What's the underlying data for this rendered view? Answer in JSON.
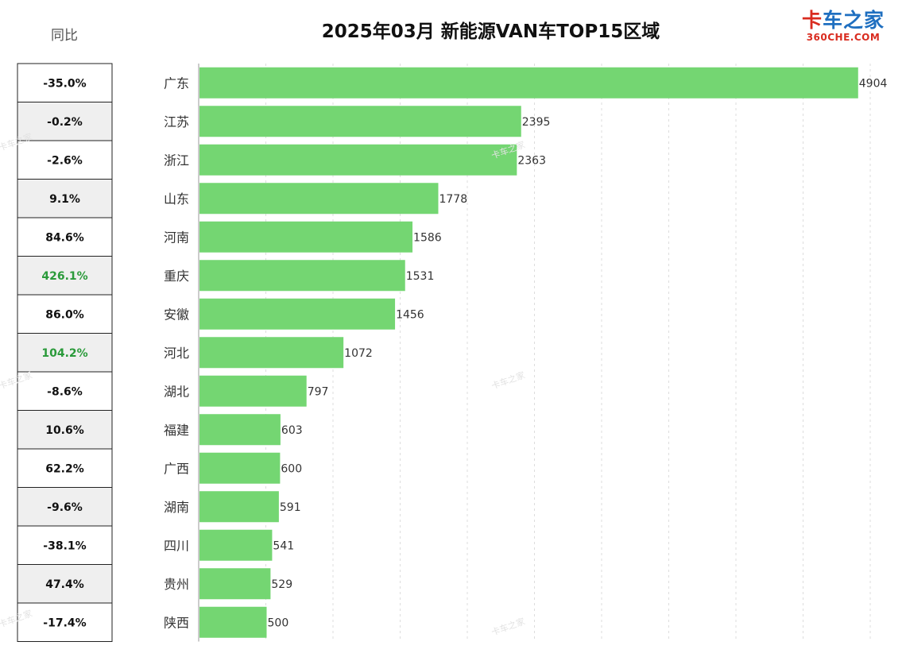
{
  "header": {
    "yoy_label": "同比",
    "logo_text": "卡车之家",
    "logo_sub": "360CHE.COM",
    "watermark_text": "卡车之家"
  },
  "colors": {
    "bar": "#74d672",
    "yoy_highlight": "#2a9a3a",
    "yoy_normal": "#111111",
    "row_alt": "#efefef",
    "grid": "#dddddd"
  },
  "chart_data": {
    "type": "bar",
    "orientation": "horizontal",
    "title": "2025年03月 新能源VAN车TOP15区域",
    "xlabel": "",
    "ylabel": "",
    "xlim": [
      0,
      5000
    ],
    "grid": "vertical dashed",
    "categories": [
      "广东",
      "江苏",
      "浙江",
      "山东",
      "河南",
      "重庆",
      "安徽",
      "河北",
      "湖北",
      "福建",
      "广西",
      "湖南",
      "四川",
      "贵州",
      "陕西"
    ],
    "values": [
      4904,
      2395,
      2363,
      1778,
      1586,
      1531,
      1456,
      1072,
      797,
      603,
      600,
      591,
      541,
      529,
      500
    ],
    "yoy": [
      "-35.0%",
      "-0.2%",
      "-2.6%",
      "9.1%",
      "84.6%",
      "426.1%",
      "86.0%",
      "104.2%",
      "-8.6%",
      "10.6%",
      "62.2%",
      "-9.6%",
      "-38.1%",
      "47.4%",
      "-17.4%"
    ],
    "yoy_highlighted": [
      false,
      false,
      false,
      false,
      false,
      true,
      false,
      true,
      false,
      false,
      false,
      false,
      false,
      false,
      false
    ]
  }
}
